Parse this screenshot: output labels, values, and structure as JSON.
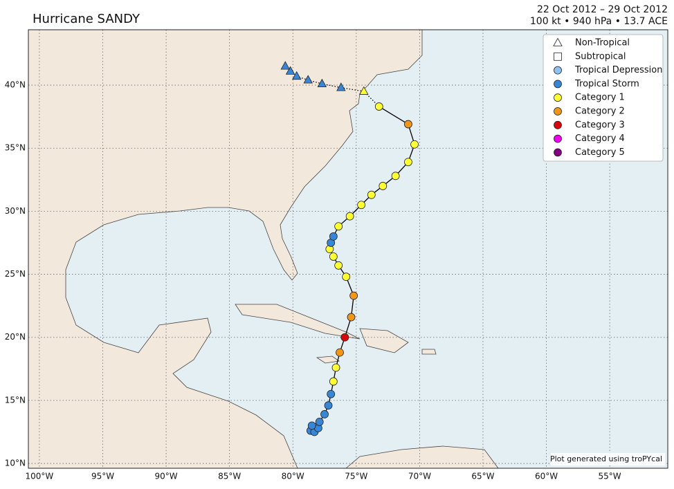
{
  "chart_data": {
    "type": "track",
    "title": "Hurricane SANDY",
    "date_range": "22 Oct 2012 – 29 Oct 2012",
    "summary": "100 kt • 940 hPa • 13.7 ACE",
    "credit": "Plot generated using troPYcal",
    "xlim": [
      -100.87,
      -50.42
    ],
    "ylim": [
      9.62,
      44.39
    ],
    "xticks": [
      {
        "value": -100,
        "label": "100°W"
      },
      {
        "value": -95,
        "label": "95°W"
      },
      {
        "value": -90,
        "label": "90°W"
      },
      {
        "value": -85,
        "label": "85°W"
      },
      {
        "value": -80,
        "label": "80°W"
      },
      {
        "value": -75,
        "label": "75°W"
      },
      {
        "value": -70,
        "label": "70°W"
      },
      {
        "value": -65,
        "label": "65°W"
      },
      {
        "value": -60,
        "label": "60°W"
      },
      {
        "value": -55,
        "label": "55°W"
      }
    ],
    "yticks": [
      {
        "value": 10,
        "label": "10°N"
      },
      {
        "value": 15,
        "label": "15°N"
      },
      {
        "value": 20,
        "label": "20°N"
      },
      {
        "value": 25,
        "label": "25°N"
      },
      {
        "value": 30,
        "label": "30°N"
      },
      {
        "value": 35,
        "label": "35°N"
      },
      {
        "value": 40,
        "label": "40°N"
      }
    ],
    "grid": true,
    "legend": [
      {
        "name": "Non-Tropical",
        "shape": "triangle",
        "color": "none"
      },
      {
        "name": "Subtropical",
        "shape": "square",
        "color": "none"
      },
      {
        "name": "Tropical Depression",
        "shape": "circle",
        "color": "#8fc2ee"
      },
      {
        "name": "Tropical Storm",
        "shape": "circle",
        "color": "#3a86d6"
      },
      {
        "name": "Category 1",
        "shape": "circle",
        "color": "#ffff33"
      },
      {
        "name": "Category 2",
        "shape": "circle",
        "color": "#f2961a"
      },
      {
        "name": "Category 3",
        "shape": "circle",
        "color": "#d8070c"
      },
      {
        "name": "Category 4",
        "shape": "circle",
        "color": "#f000f0"
      },
      {
        "name": "Category 5",
        "shape": "circle",
        "color": "#800080"
      }
    ],
    "track": {
      "lon": [
        -78.6,
        -78.3,
        -78.0,
        -78.5,
        -77.9,
        -77.5,
        -77.2,
        -77.0,
        -76.8,
        -76.6,
        -76.3,
        -75.9,
        -75.4,
        -75.2,
        -75.8,
        -76.4,
        -76.8,
        -77.1,
        -77.0,
        -76.8,
        -76.4,
        -75.5,
        -74.6,
        -73.8,
        -72.9,
        -71.9,
        -70.9,
        -70.4,
        -70.9,
        -73.2,
        -74.4,
        -76.2,
        -77.7,
        -78.8,
        -79.7,
        -80.2,
        -80.6
      ],
      "lat": [
        12.6,
        12.5,
        12.8,
        13.0,
        13.3,
        13.9,
        14.6,
        15.5,
        16.5,
        17.6,
        18.8,
        20.0,
        21.6,
        23.3,
        24.8,
        25.7,
        26.4,
        27.0,
        27.5,
        28.0,
        28.8,
        29.6,
        30.5,
        31.3,
        32.0,
        32.8,
        33.9,
        35.3,
        36.9,
        38.3,
        39.5,
        39.8,
        40.1,
        40.4,
        40.7,
        41.1,
        41.5
      ],
      "class": [
        "Tropical Storm",
        "Tropical Storm",
        "Tropical Storm",
        "Tropical Storm",
        "Tropical Storm",
        "Tropical Storm",
        "Tropical Storm",
        "Tropical Storm",
        "Category 1",
        "Category 1",
        "Category 2",
        "Category 3",
        "Category 2",
        "Category 2",
        "Category 1",
        "Category 1",
        "Category 1",
        "Category 1",
        "Tropical Storm",
        "Tropical Storm",
        "Category 1",
        "Category 1",
        "Category 1",
        "Category 1",
        "Category 1",
        "Category 1",
        "Category 1",
        "Category 1",
        "Category 2",
        "Category 1",
        "Category 1",
        "Tropical Storm",
        "Tropical Storm",
        "Tropical Storm",
        "Tropical Storm",
        "Tropical Storm",
        "Tropical Storm"
      ],
      "non_tropical": [
        false,
        false,
        false,
        false,
        false,
        false,
        false,
        false,
        false,
        false,
        false,
        false,
        false,
        false,
        false,
        false,
        false,
        false,
        false,
        false,
        false,
        false,
        false,
        false,
        false,
        false,
        false,
        false,
        false,
        false,
        true,
        true,
        true,
        true,
        true,
        true,
        true
      ]
    }
  }
}
